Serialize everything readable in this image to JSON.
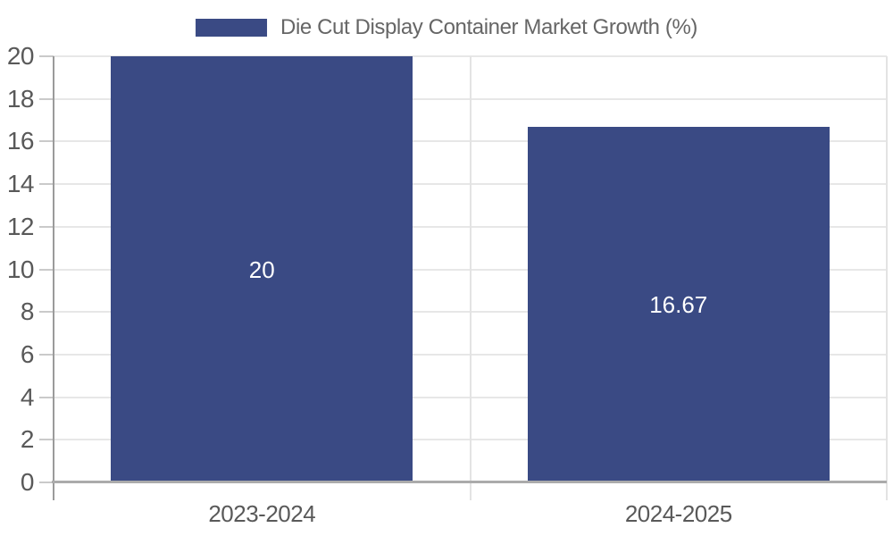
{
  "chart_data": {
    "type": "bar",
    "title": "",
    "xlabel": "",
    "ylabel": "",
    "legend_label": "Die Cut Display Container Market Growth (%)",
    "legend_position": "top-center",
    "categories": [
      "2023-2024",
      "2024-2025"
    ],
    "series": [
      {
        "name": "Die Cut Display Container Market Growth (%)",
        "values": [
          20,
          16.67
        ]
      }
    ],
    "value_labels": [
      "20",
      "16.67"
    ],
    "y_ticks": [
      "20",
      "18",
      "16",
      "14",
      "12",
      "10",
      "8",
      "6",
      "4",
      "2",
      "0"
    ],
    "y_tick_values": [
      20,
      18,
      16,
      14,
      12,
      10,
      8,
      6,
      4,
      2,
      0
    ],
    "ylim": [
      0,
      20
    ],
    "grid": true,
    "colors": {
      "bar": "#3A4A84",
      "bar_value_label": "#FFFFFF",
      "axis_text": "#595959",
      "legend_text": "#666666",
      "gridline": "#E7E7E7",
      "category_divider": "#E3E3E3",
      "tick_mark": "#CACACA"
    }
  }
}
